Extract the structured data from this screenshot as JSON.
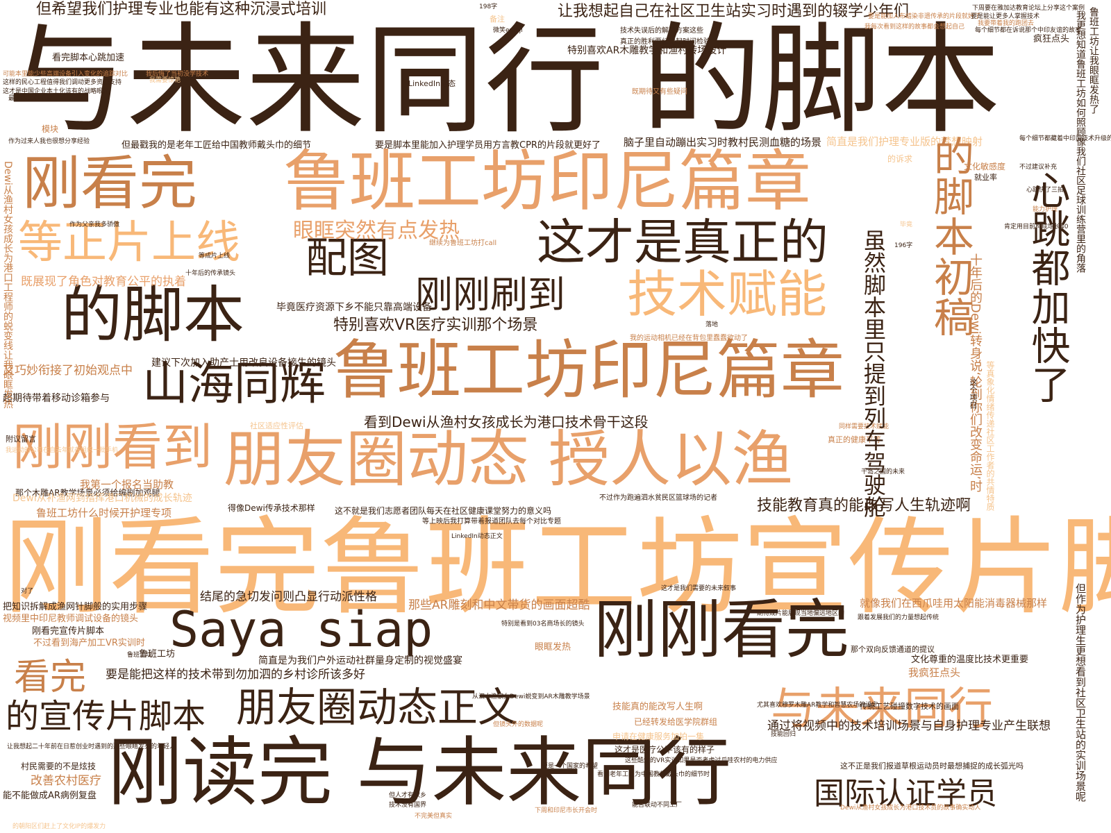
{
  "colors": {
    "dark": "#3b2314",
    "brown": "#c8804a",
    "tan": "#e8a06a",
    "peach": "#f8b878",
    "light": "#f5c48e"
  },
  "words": [
    {
      "text": "与未来同行 的脚本",
      "c": "dark"
    },
    {
      "text": "刚看完鲁班工坊宣传片脚本",
      "c": "peach"
    },
    {
      "text": "鲁班工坊印尼篇章",
      "c": "tan"
    },
    {
      "text": "鲁班工坊印尼篇章",
      "c": "brown"
    },
    {
      "text": "朋友圈动态 授人以渔",
      "c": "tan"
    },
    {
      "text": "刚读完 与未来同行",
      "c": "dark"
    },
    {
      "text": "刚看完",
      "c": "brown"
    },
    {
      "text": "的脚本",
      "c": "dark"
    },
    {
      "text": "等正片上线",
      "c": "peach"
    },
    {
      "text": "刚刚看到",
      "c": "tan"
    },
    {
      "text": "山海同辉",
      "c": "dark"
    },
    {
      "text": "配图",
      "c": "dark"
    },
    {
      "text": "这才是真正的",
      "c": "dark"
    },
    {
      "text": "技术赋能",
      "c": "peach"
    },
    {
      "text": "刚刚刷到",
      "c": "dark"
    },
    {
      "text": "刚刚看完",
      "c": "dark"
    },
    {
      "text": "Saya siap",
      "c": "dark"
    },
    {
      "text": "看完",
      "c": "brown"
    },
    {
      "text": "的宣传片脚本",
      "c": "dark"
    },
    {
      "text": "朋友圈动态正文",
      "c": "dark"
    },
    {
      "text": "与未来同行",
      "c": "tan"
    },
    {
      "text": "国际认证学员",
      "c": "dark"
    },
    {
      "text": "眼眶突然有点发热",
      "c": "tan"
    },
    {
      "text": "但希望我们护理专业也能有这种沉浸式培训",
      "c": "dark"
    },
    {
      "text": "让我想起自己在社区卫生站实习时遇到的辍学少年们",
      "c": "dark"
    },
    {
      "text": "特别喜欢VR医疗实训那个场景",
      "c": "dark"
    },
    {
      "text": "看到Dewi从渔村女孩成长为港口技术骨干这段",
      "c": "dark"
    },
    {
      "text": "技能教育真的能改写人生轨迹啊",
      "c": "dark"
    },
    {
      "text": "心跳都加快了",
      "c": "dark"
    },
    {
      "text": "的脚本初稿",
      "c": "brown"
    },
    {
      "text": "虽然脚本里只提到列车驾驶舱",
      "c": "dark"
    },
    {
      "text": "十年后的Dewi转身说‘轮到你们改变命运’时",
      "c": "brown"
    },
    {
      "text": "通过将视频中的技术培训场景与自身护理专业产生联想",
      "c": "dark"
    },
    {
      "text": "结尾的急切发问则凸显行动派性格",
      "c": "dark"
    },
    {
      "text": "那些AR雕刻和中文带货的画面超酷",
      "c": "brown"
    },
    {
      "text": "就像我们在西爪哇用太阳能消毒器械那样",
      "c": "brown"
    },
    {
      "text": "要是能把这样的技术带到勿加泗的乡村诊所该多好",
      "c": "dark"
    },
    {
      "text": "简直是为我们户外运动社群量身定制的视觉盛宴",
      "c": "dark"
    },
    {
      "text": "毕竟医疗资源下乡不能只靠高端设备",
      "c": "dark"
    },
    {
      "text": "建议下次加入助产士用改良设备接生的镜头",
      "c": "dark"
    },
    {
      "text": "但最戳我的是老年工匠给中国教师戴头巾的细节",
      "c": "dark"
    },
    {
      "text": "要是脚本里能加入护理学员用方言教CPR的片段就更好了",
      "c": "dark"
    },
    {
      "text": "脑子里自动蹦出实习时教村民测血糖的场景",
      "c": "dark"
    },
    {
      "text": "特别喜欢AR木雕教学和渔村转场设计",
      "c": "dark"
    },
    {
      "text": "简直是我们护理专业版的梦想映射",
      "c": "light"
    },
    {
      "text": "既展现了角色对教育公平的执着",
      "c": "tan"
    },
    {
      "text": "又巧妙衔接了初始观点中",
      "c": "brown"
    },
    {
      "text": "超期待带着移动诊箱参与",
      "c": "dark"
    },
    {
      "text": "那个木雕AR教学场景必须给编剧加鸡腿",
      "c": "dark"
    },
    {
      "text": "我第一个报名当助教",
      "c": "brown"
    },
    {
      "text": "Dewi从补渔网到指挥港口机械的成长轨迹",
      "c": "light"
    },
    {
      "text": "鲁班工坊什么时候开护理专项",
      "c": "brown"
    },
    {
      "text": "得像Dewi传承技术那样",
      "c": "dark"
    },
    {
      "text": "这不就是我们志愿者团队每天在社区健康课堂努力的意义吗",
      "c": "dark"
    },
    {
      "text": "把知识拆解成渔网针脚般的实用步骤",
      "c": "dark"
    },
    {
      "text": "视频里中印尼教师调试设备的镜头",
      "c": "brown"
    },
    {
      "text": "刚看完宣传片脚本",
      "c": "dark"
    },
    {
      "text": "不过看到海产加工VR实训时",
      "c": "brown"
    },
    {
      "text": "鲁班工坊",
      "c": "dark"
    },
    {
      "text": "改善农村医疗",
      "c": "brown"
    },
    {
      "text": "能不能做成AR病例复盘",
      "c": "dark"
    },
    {
      "text": "村民需要的不是炫技",
      "c": "dark"
    },
    {
      "text": "眼眶发热",
      "c": "brown"
    },
    {
      "text": "我疯狂点头",
      "c": "brown"
    },
    {
      "text": "文化尊重的温度比技术更重要",
      "c": "dark"
    },
    {
      "text": "技能真的能改写人生啊",
      "c": "brown"
    },
    {
      "text": "已经转发给医学院群组",
      "c": "brown"
    },
    {
      "text": "这才是医疗公平该有的样子",
      "c": "dark"
    },
    {
      "text": "申请在健康服务加拍一集",
      "c": "light"
    },
    {
      "text": "这不正是我们报道草根运动员时最想捕捉的成长弧光吗",
      "c": "dark"
    },
    {
      "text": "传统工艺碰撞数字技术的画面",
      "c": "dark"
    },
    {
      "text": "那个双向反馈通道的提议",
      "c": "dark"
    },
    {
      "text": "社区适应性评估",
      "c": "light"
    },
    {
      "text": "真正的健康平等",
      "c": "brown"
    },
    {
      "text": "附议留言",
      "c": "dark"
    },
    {
      "text": "看完脚本心跳加速",
      "c": "dark"
    },
    {
      "text": "LinkedIn动态",
      "c": "dark"
    },
    {
      "text": "继续为鲁班工坊打call",
      "c": "brown"
    },
    {
      "text": "技术失误后的解决方案这些",
      "c": "dark"
    },
    {
      "text": "真正的胜利要经得起时间检验",
      "c": "dark"
    },
    {
      "text": "既期待又有些疑问",
      "c": "brown"
    },
    {
      "text": "疯狂点头",
      "c": "dark"
    },
    {
      "text": "备注",
      "c": "light"
    },
    {
      "text": "模块",
      "c": "brown"
    },
    {
      "text": "的诉求",
      "c": "light"
    },
    {
      "text": "文化敏感度",
      "c": "brown"
    },
    {
      "text": "就业率",
      "c": "dark"
    },
    {
      "text": "我的运动相机已经在背包里蠢蠢欲动了",
      "c": "brown"
    },
    {
      "text": "不过作为跑遍泗水贫民区篮球场的记者",
      "c": "dark"
    },
    {
      "text": "等上映后我打算带着报道团队去每个对比专题",
      "c": "dark"
    },
    {
      "text": "等真象化情绪传递社区工作者的共情特质",
      "c": "light"
    },
    {
      "text": "我更想知道鲁班工坊如何照顾像我们社区足球训练营里的角落",
      "c": "dark"
    },
    {
      "text": "鲁班工坊让我眼眶发热了",
      "c": "dark"
    },
    {
      "text": "但作为护理生更想看到社区卫生站的实训场景呢",
      "c": "dark"
    },
    {
      "text": "Dewi从渔村女孩成长为港口工程师的蜕变线让我眼眶发热",
      "c": "brown"
    },
    {
      "text": "十年后的传承镜头",
      "c": "dark"
    },
    {
      "text": "作为父亲我多骄傲",
      "c": "dark"
    },
    {
      "text": "等成片上线",
      "c": "dark"
    },
    {
      "text": "198字",
      "c": "dark"
    },
    {
      "text": "196字",
      "c": "dark"
    },
    {
      "text": "毕竟",
      "c": "light"
    },
    {
      "text": "落地",
      "c": "dark"
    },
    {
      "text": "千岛之国的未来",
      "c": "dark"
    },
    {
      "text": "对了",
      "c": "dark"
    },
    {
      "text": "这才是我们需要的未来叙事",
      "c": "dark"
    },
    {
      "text": "LinkedIn动态正文",
      "c": "dark"
    },
    {
      "text": "特别是看到03名商场长的镜头",
      "c": "dark"
    },
    {
      "text": "从泗水渔家女Dewi蜕变到AR木雕教学场景",
      "c": "dark"
    },
    {
      "text": "但镜头外的数据呢",
      "c": "brown"
    },
    {
      "text": "期待成片能展现当地偏远地区的",
      "c": "dark"
    },
    {
      "text": "跟着发展我们的力量想起传统",
      "c": "dark"
    },
    {
      "text": "尤其喜欢穆罗木雕AR教学和智慧农场的设定",
      "c": "dark"
    },
    {
      "text": "技能回归",
      "c": "dark"
    },
    {
      "text": "更是一个国家的希望",
      "c": "dark"
    },
    {
      "text": "但人才有故乡",
      "c": "dark"
    },
    {
      "text": "技术没有国界",
      "c": "dark"
    },
    {
      "text": "不完美但真实",
      "c": "brown"
    },
    {
      "text": "下周和印尼市长开会时",
      "c": "brown"
    },
    {
      "text": "让我想起二十年前在日惹创业时遇到的那些眼睛发亮的年轻人",
      "c": "dark"
    },
    {
      "text": "的朝阳区们赶上了文化IP的爆发力",
      "c": "light"
    },
    {
      "text": "这些酷炫的VR实训如果是否考虑过爪哇农村的电力供应",
      "c": "dark"
    },
    {
      "text": "看到老年工匠为中国教师戴头巾的细节时",
      "c": "dark"
    },
    {
      "text": "Dewi从渔村女孩成长为港口技术员的故事确实动人",
      "c": "brown"
    },
    {
      "text": "能否联动不同工厂",
      "c": "dark"
    },
    {
      "text": "这个项目",
      "c": "dark"
    },
    {
      "text": "这样的民心工程值得我们调动更多资源支持",
      "c": "dark"
    },
    {
      "text": "这才是中国企业本土化该有的战略眼光",
      "c": "dark"
    },
    {
      "text": "我需要惊艳",
      "c": "light"
    },
    {
      "text": "要是能加入布蜡染非遗传承的片段就好了",
      "c": "brown"
    },
    {
      "text": "我每次看到这样的故事都会想起自己",
      "c": "brown"
    },
    {
      "text": "作为过来人我也很想分享经验",
      "c": "dark"
    },
    {
      "text": "鲁班工坊",
      "c": "dark"
    },
    {
      "text": "同样需要技术赋能",
      "c": "brown"
    },
    {
      "text": "我运动的公司在自去年就在组织一批手机",
      "c": "light"
    },
    {
      "text": "微笑emoji",
      "c": "dark"
    },
    {
      "text": "每个细节都藏着中印尼技术升级的痛点",
      "c": "dark"
    },
    {
      "text": "不过建议补充",
      "c": "dark"
    },
    {
      "text": "心跳快了三拍",
      "c": "dark"
    },
    {
      "text": "能力护理",
      "c": "brown"
    },
    {
      "text": "肯定用目前构成增长40",
      "c": "dark"
    },
    {
      "text": "要是能让更多人掌握技术",
      "c": "dark"
    },
    {
      "text": "每个细节都在诉说那个中印友谊的故事",
      "c": "dark"
    },
    {
      "text": "我要带着我的跑团去",
      "c": "brown"
    },
    {
      "text": "下周要在雅加达教育论坛上分享这个案例",
      "c": "dark"
    },
    {
      "text": "可能本里能少些高端设备引入变化的追踪对比",
      "c": "brown"
    },
    {
      "text": "我后悔了当初没学技术",
      "c": "brown"
    },
    {
      "text": "最大的民心工程",
      "c": "dark"
    }
  ]
}
